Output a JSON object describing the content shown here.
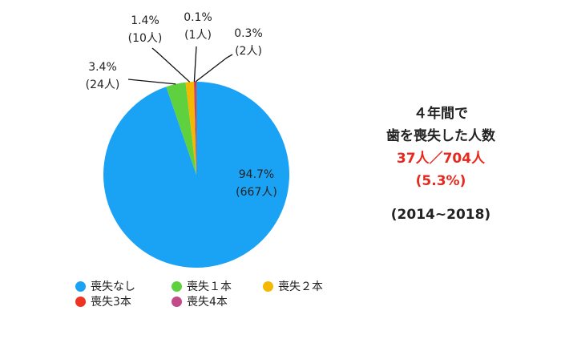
{
  "chart_data": {
    "type": "pie",
    "categories": [
      "喪失なし",
      "喪失１本",
      "喪失２本",
      "喪失3本",
      "喪失4本"
    ],
    "values": [
      667,
      24,
      10,
      2,
      1
    ],
    "percent_labels": [
      "94.7%",
      "3.4%",
      "1.4%",
      "0.3%",
      "0.1%"
    ],
    "count_labels": [
      "(667人)",
      "(24人)",
      "(10人)",
      "(2人)",
      "(1人)"
    ],
    "colors": [
      "#1aa3f5",
      "#5fd13f",
      "#f5b800",
      "#ee3322",
      "#c24a8a"
    ],
    "legend_position": "bottom"
  },
  "summary": {
    "line1": "４年間で",
    "line2": "歯を喪失した人数",
    "line3": "37人／704人",
    "line4": "(5.3%)",
    "line5": "(2014~2018)"
  }
}
